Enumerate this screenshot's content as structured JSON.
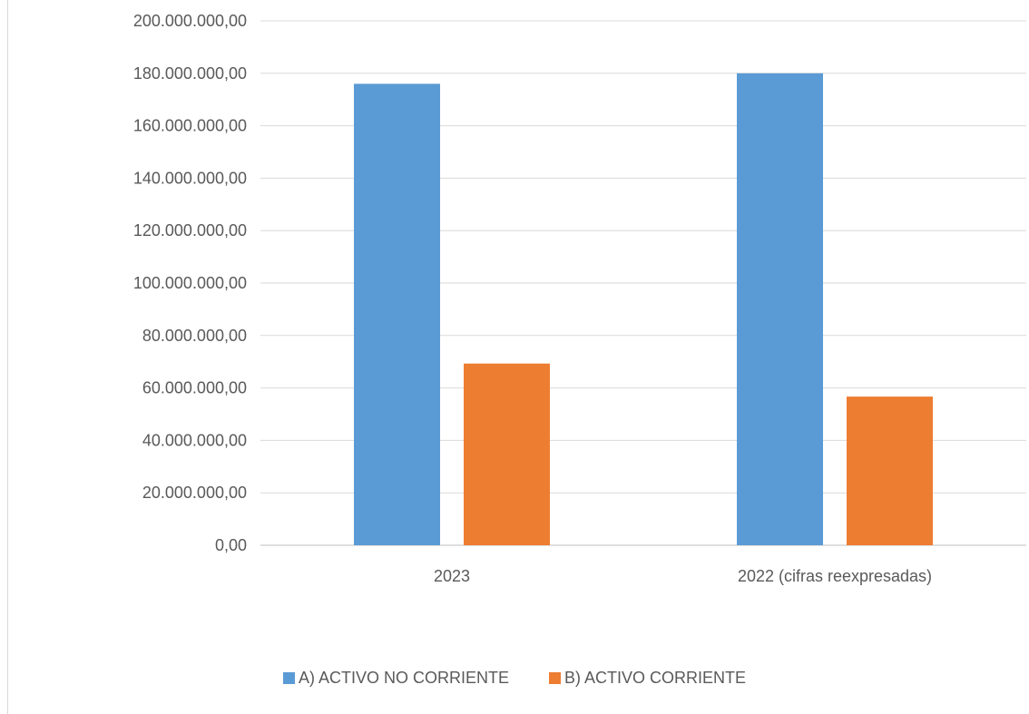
{
  "chart_data": {
    "type": "bar",
    "categories": [
      "2023",
      "2022 (cifras reexpresadas)"
    ],
    "series": [
      {
        "name": "A) ACTIVO NO CORRIENTE",
        "values": [
          176000000,
          180000000
        ],
        "color": "#5b9bd5"
      },
      {
        "name": "B) ACTIVO CORRIENTE",
        "values": [
          69300000,
          56700000
        ],
        "color": "#ed7d31"
      }
    ],
    "ylim": [
      0,
      200000000
    ],
    "yticks": [
      0,
      20000000,
      40000000,
      60000000,
      80000000,
      100000000,
      120000000,
      140000000,
      160000000,
      180000000,
      200000000
    ],
    "ytick_labels": [
      "0,00",
      "20.000.000,00",
      "40.000.000,00",
      "60.000.000,00",
      "80.000.000,00",
      "100.000.000,00",
      "120.000.000,00",
      "140.000.000,00",
      "160.000.000,00",
      "180.000.000,00",
      "200.000.000,00"
    ],
    "grid": true,
    "legend_position": "bottom",
    "title": "",
    "xlabel": "",
    "ylabel": ""
  }
}
